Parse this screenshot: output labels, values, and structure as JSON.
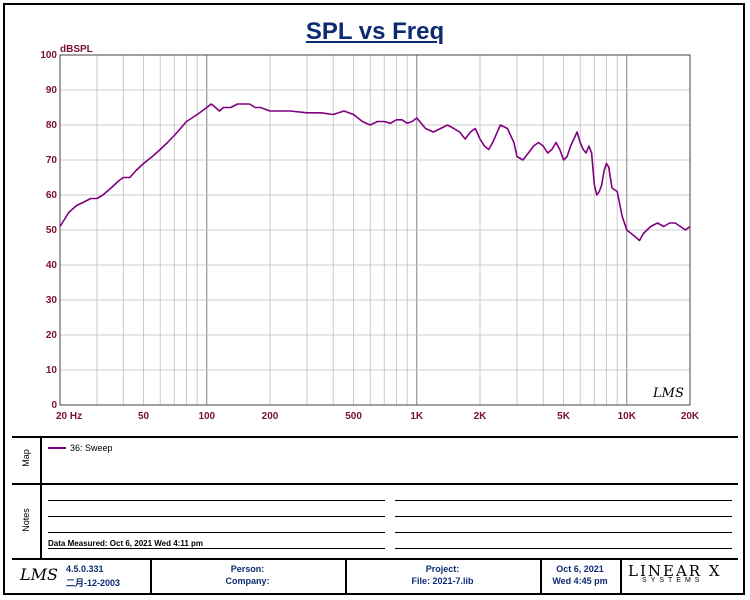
{
  "chart_data": {
    "type": "line",
    "title": "SPL vs Freq",
    "ylabel": "dBSPL",
    "xlabel": "",
    "x_scale": "log",
    "xlim": [
      20,
      20000
    ],
    "ylim": [
      0,
      100
    ],
    "yticks": [
      0,
      10,
      20,
      30,
      40,
      50,
      60,
      70,
      80,
      90,
      100
    ],
    "xtick_values": [
      20,
      50,
      100,
      200,
      500,
      1000,
      2000,
      5000,
      10000,
      20000
    ],
    "xtick_labels": [
      "20 Hz",
      "50",
      "100",
      "200",
      "500",
      "1K",
      "2K",
      "5K",
      "10K",
      "20K"
    ],
    "series": [
      {
        "name": "36: Sweep",
        "color": "#800080",
        "x": [
          20,
          21,
          22,
          24,
          26,
          28,
          30,
          32,
          35,
          38,
          40,
          43,
          46,
          50,
          55,
          60,
          65,
          70,
          75,
          80,
          85,
          90,
          95,
          100,
          105,
          110,
          115,
          120,
          130,
          140,
          150,
          160,
          170,
          180,
          200,
          220,
          250,
          300,
          350,
          400,
          450,
          500,
          550,
          600,
          650,
          700,
          750,
          800,
          850,
          900,
          950,
          1000,
          1100,
          1200,
          1300,
          1400,
          1500,
          1600,
          1700,
          1800,
          1900,
          2000,
          2100,
          2200,
          2300,
          2500,
          2700,
          2900,
          3000,
          3200,
          3400,
          3600,
          3800,
          4000,
          4200,
          4400,
          4600,
          4800,
          5000,
          5200,
          5400,
          5600,
          5800,
          6000,
          6200,
          6400,
          6600,
          6800,
          7000,
          7200,
          7400,
          7600,
          7800,
          8000,
          8200,
          8500,
          9000,
          9500,
          10000,
          10500,
          11000,
          11500,
          12000,
          13000,
          14000,
          15000,
          16000,
          17000,
          18000,
          19000,
          20000
        ],
        "values": [
          51,
          53,
          55,
          57,
          58,
          59,
          59,
          60,
          62,
          64,
          65,
          65,
          67,
          69,
          71,
          73,
          75,
          77,
          79,
          81,
          82,
          83,
          84,
          85,
          86,
          85,
          84,
          85,
          85,
          86,
          86,
          86,
          85,
          85,
          84,
          84,
          84,
          83.5,
          83.5,
          83,
          84,
          83,
          81,
          80,
          81,
          81,
          80.5,
          81.5,
          81.5,
          80.5,
          81,
          82,
          79,
          78,
          79,
          80,
          79,
          78,
          76,
          78,
          79,
          76,
          74,
          73,
          75,
          80,
          79,
          75,
          71,
          70,
          72,
          74,
          75,
          74,
          72,
          73,
          75,
          73,
          70,
          71,
          74,
          76,
          78,
          75,
          73,
          72,
          74,
          72,
          63,
          60,
          61,
          63,
          67,
          69,
          68,
          62,
          61,
          54,
          50,
          49,
          48,
          47,
          49,
          51,
          52,
          51,
          52,
          52,
          51,
          50,
          51
        ]
      }
    ]
  },
  "map": {
    "label": "Map",
    "legend_entry": "36: Sweep"
  },
  "notes": {
    "label": "Notes",
    "data_measured": "Data Measured: Oct  6, 2021  Wed  4:11 pm"
  },
  "footer": {
    "logo": "LMS",
    "version": "4.5.0.331",
    "version_date": "二月-12-2003",
    "person_label": "Person:",
    "company_label": "Company:",
    "project_label": "Project:",
    "file_label": "File: 2021-7.lib",
    "date": "Oct  6, 2021",
    "time": "Wed  4:45 pm",
    "brand": "LINEAR X",
    "brand_sub": "SYSTEMS"
  },
  "watermark": "LMS",
  "colors": {
    "title": "#0d2b73",
    "axis_labels": "#7a1030",
    "trace": "#800080",
    "grid": "#b0b0b0"
  }
}
